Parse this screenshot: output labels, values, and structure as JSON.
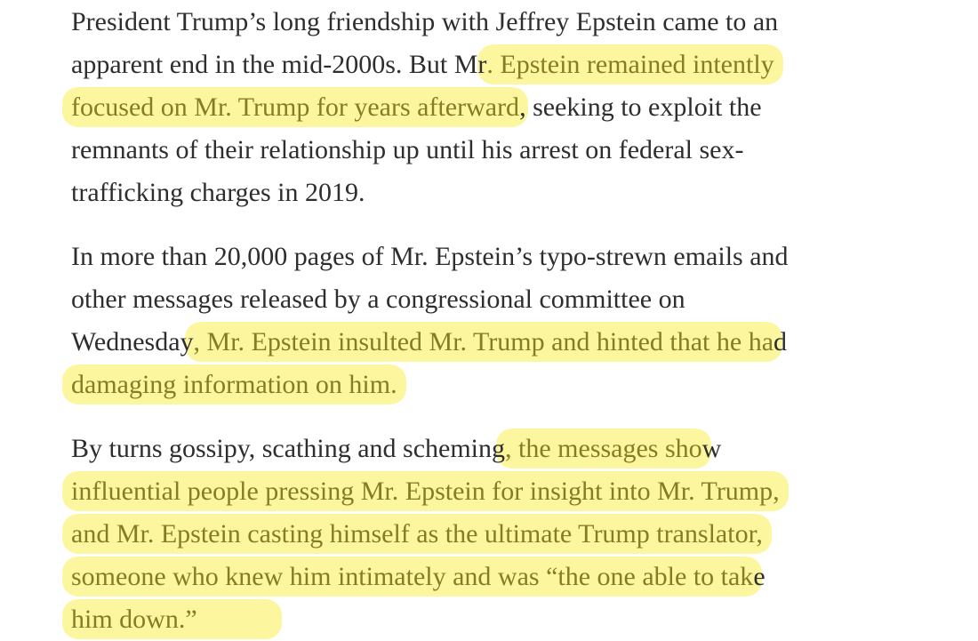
{
  "page": {
    "background": "#ffffff",
    "description": "News article excerpt with reader highlights"
  },
  "colors": {
    "body_text": "#2e2e2e",
    "highlight_text": "#867c23",
    "highlight_background": "#fcf79f"
  },
  "article": {
    "paragraphs": [
      {
        "lines": [
          [
            {
              "text": "President Trump’s long friendship with Jeffrey Epstein came to an",
              "highlight": false
            }
          ],
          [
            {
              "text": "apparent end in the mid-2000s. But Mr",
              "highlight": false
            },
            {
              "text": ". Epstein remained intently",
              "highlight": true
            }
          ],
          [
            {
              "text": "focused on Mr. Trump for years afterward",
              "highlight": true
            },
            {
              "text": ", seeking to exploit the",
              "highlight": false
            }
          ],
          [
            {
              "text": "remnants of their relationship up until his arrest on federal sex-",
              "highlight": false
            }
          ],
          [
            {
              "text": "trafficking charges in 2019.",
              "highlight": false
            }
          ]
        ]
      },
      {
        "lines": [
          [
            {
              "text": "In more than 20,000 pages of Mr. Epstein’s typo-strewn emails and",
              "highlight": false
            }
          ],
          [
            {
              "text": "other messages released by a congressional committee on",
              "highlight": false
            }
          ],
          [
            {
              "text": "Wednesday",
              "highlight": false
            },
            {
              "text": ", Mr. Epstein insulted Mr. Trump and hinted that he ha",
              "highlight": true
            },
            {
              "text": "d",
              "highlight": false
            }
          ],
          [
            {
              "text": "damaging information on him.",
              "highlight": true
            }
          ]
        ]
      },
      {
        "lines": [
          [
            {
              "text": "By turns gossipy, scathing and scheming",
              "highlight": false
            },
            {
              "text": ", the messages sho",
              "highlight": true
            },
            {
              "text": "w",
              "highlight": false
            }
          ],
          [
            {
              "text": "influential people pressing Mr. Epstein for insight into Mr. Trump,",
              "highlight": true
            }
          ],
          [
            {
              "text": "and Mr. Epstein casting himself as the ultimate Trump translator,",
              "highlight": true
            }
          ],
          [
            {
              "text": "someone who knew him intimately and was “the one able to tak",
              "highlight": true
            },
            {
              "text": "e",
              "highlight": false
            }
          ],
          [
            {
              "text": "him down.”",
              "highlight": true
            }
          ]
        ]
      }
    ]
  }
}
